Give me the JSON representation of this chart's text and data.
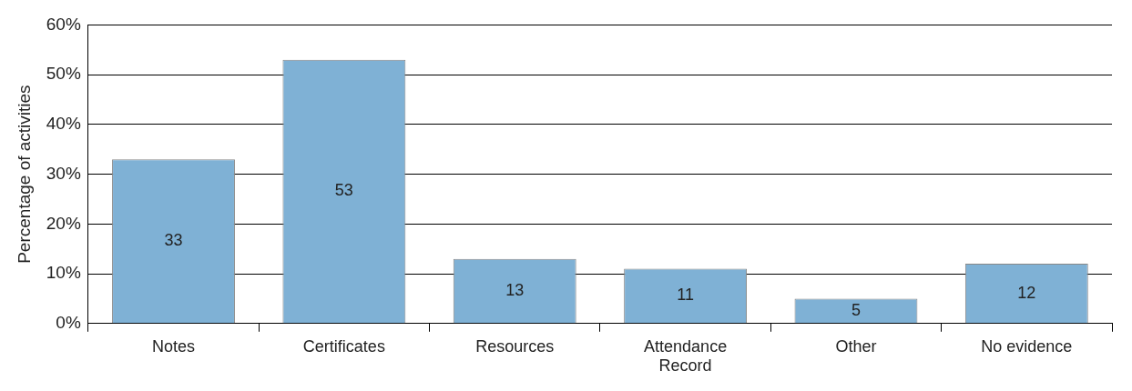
{
  "chart_data": {
    "type": "bar",
    "ylabel": "Percentage of activities",
    "categories": [
      "Notes",
      "Certificates",
      "Resources",
      "Attendance Record",
      "Other",
      "No evidence"
    ],
    "values": [
      33,
      53,
      13,
      11,
      5,
      12
    ],
    "color": "#7fb1d5",
    "ylim": [
      0,
      60
    ],
    "yticks": [
      {
        "value": 0,
        "label": "0%"
      },
      {
        "value": 10,
        "label": "10%"
      },
      {
        "value": 20,
        "label": "20%"
      },
      {
        "value": 30,
        "label": "30%"
      },
      {
        "value": 40,
        "label": "40%"
      },
      {
        "value": 50,
        "label": "50%"
      },
      {
        "value": 60,
        "label": "60%"
      }
    ],
    "grid": "y",
    "legend": false,
    "data_labels": true
  }
}
